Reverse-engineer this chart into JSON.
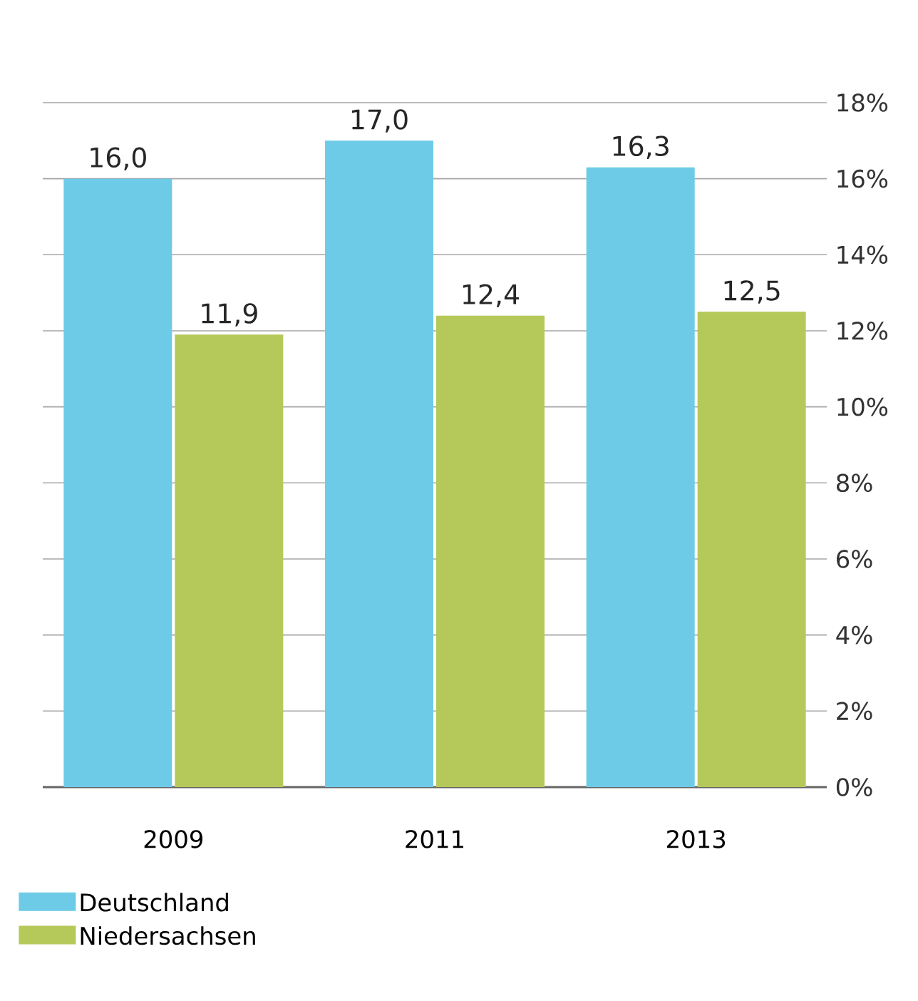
{
  "chart_data": {
    "type": "bar",
    "categories": [
      "2009",
      "2011",
      "2013"
    ],
    "series": [
      {
        "name": "Deutschland",
        "color": "#6dcbe8",
        "values": [
          16.0,
          17.0,
          16.3
        ],
        "value_labels": [
          "16,0",
          "17,0",
          "16,3"
        ]
      },
      {
        "name": "Niedersachsen",
        "color": "#b5c95a",
        "values": [
          11.9,
          12.4,
          12.5
        ],
        "value_labels": [
          "11,9",
          "12,4",
          "12,5"
        ]
      }
    ],
    "ylim": [
      0,
      18
    ],
    "yticks": [
      {
        "value": 0,
        "label": "0%"
      },
      {
        "value": 2,
        "label": "2%"
      },
      {
        "value": 4,
        "label": "4%"
      },
      {
        "value": 6,
        "label": "6%"
      },
      {
        "value": 8,
        "label": "8%"
      },
      {
        "value": 10,
        "label": "10%"
      },
      {
        "value": 12,
        "label": "12%"
      },
      {
        "value": 14,
        "label": "14%"
      },
      {
        "value": 16,
        "label": "16%"
      },
      {
        "value": 18,
        "label": "18%"
      }
    ],
    "grid": "y",
    "legend": "bottom left"
  }
}
